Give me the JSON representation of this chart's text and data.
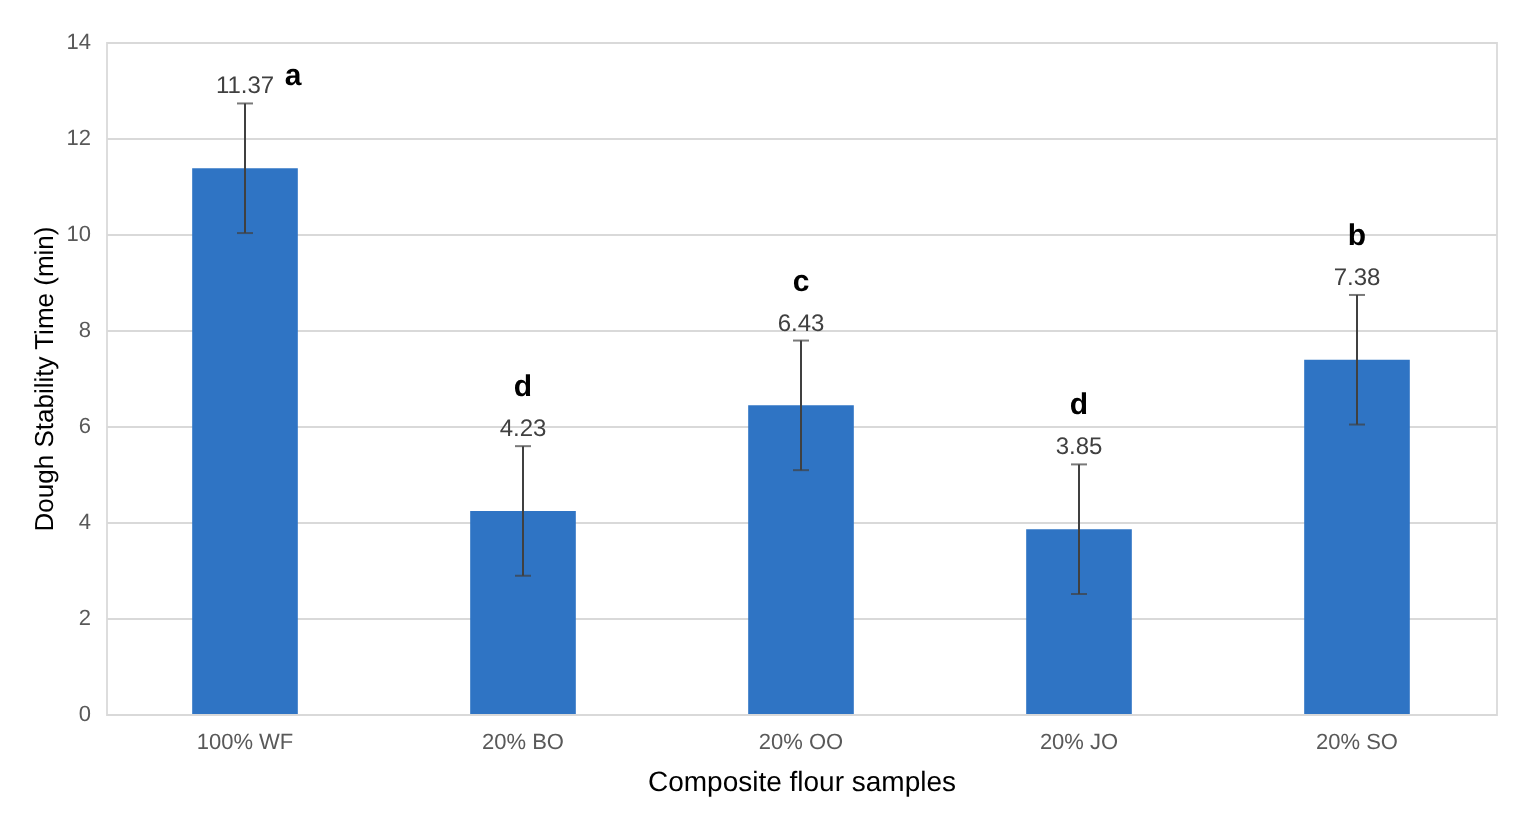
{
  "chart_data": {
    "type": "bar",
    "xlabel": "Composite flour samples",
    "ylabel": "Dough Stability Time (min)",
    "categories": [
      "100% WF",
      "20% BO",
      "20% OO",
      "20% JO",
      "20% SO"
    ],
    "values": [
      11.37,
      4.23,
      6.43,
      3.85,
      7.38
    ],
    "errors": [
      1.35,
      1.35,
      1.35,
      1.35,
      1.35
    ],
    "color": "#2f74c4",
    "ylim": [
      0,
      14
    ],
    "yticks": [
      0,
      2,
      4,
      6,
      8,
      10,
      12,
      14
    ],
    "grid": "y",
    "data_labels": true,
    "annotations": [
      "a",
      "d",
      "c",
      "d",
      "b"
    ]
  }
}
